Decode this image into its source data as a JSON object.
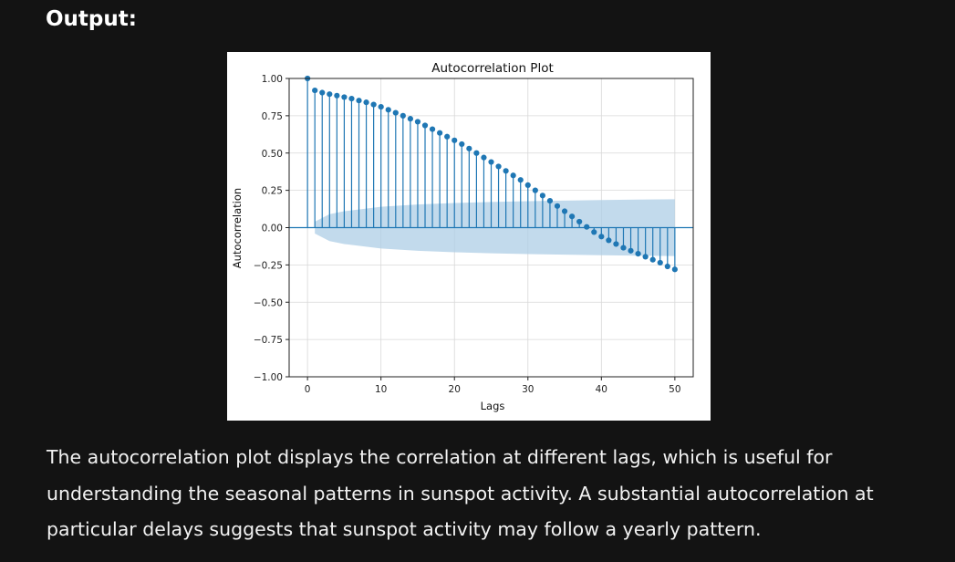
{
  "heading": "Output:",
  "caption": "The autocorrelation plot displays the correlation at different lags, which is useful for understanding the seasonal patterns in sunspot activity. A substantial autocorrelation at particular delays suggests that sunspot activity may follow a yearly pattern.",
  "colors": {
    "page_background": "#131313",
    "marker": "#1f77b4",
    "confidence_band": "#aecde6",
    "grid": "#d8d8d8"
  },
  "chart_data": {
    "type": "scatter",
    "style": "stem",
    "title": "Autocorrelation Plot",
    "xlabel": "Lags",
    "ylabel": "Autocorrelation",
    "xlim": [
      -2.5,
      52.5
    ],
    "ylim": [
      -1.0,
      1.0
    ],
    "xticks": [
      0,
      10,
      20,
      30,
      40,
      50
    ],
    "yticks": [
      1.0,
      0.75,
      0.5,
      0.25,
      0.0,
      -0.25,
      -0.5,
      -0.75,
      -1.0
    ],
    "ytick_labels": [
      "1.00",
      "0.75",
      "0.50",
      "0.25",
      "0.00",
      "−0.25",
      "−0.50",
      "−0.75",
      "−1.00"
    ],
    "grid": true,
    "x": [
      0,
      1,
      2,
      3,
      4,
      5,
      6,
      7,
      8,
      9,
      10,
      11,
      12,
      13,
      14,
      15,
      16,
      17,
      18,
      19,
      20,
      21,
      22,
      23,
      24,
      25,
      26,
      27,
      28,
      29,
      30,
      31,
      32,
      33,
      34,
      35,
      36,
      37,
      38,
      39,
      40,
      41,
      42,
      43,
      44,
      45,
      46,
      47,
      48,
      49,
      50
    ],
    "values": [
      1.0,
      0.92,
      0.905,
      0.895,
      0.885,
      0.875,
      0.865,
      0.852,
      0.84,
      0.825,
      0.81,
      0.79,
      0.77,
      0.75,
      0.73,
      0.71,
      0.685,
      0.66,
      0.635,
      0.61,
      0.585,
      0.56,
      0.53,
      0.5,
      0.47,
      0.44,
      0.41,
      0.38,
      0.35,
      0.32,
      0.285,
      0.25,
      0.215,
      0.18,
      0.145,
      0.11,
      0.075,
      0.04,
      0.005,
      -0.03,
      -0.06,
      -0.085,
      -0.11,
      -0.135,
      -0.155,
      -0.175,
      -0.195,
      -0.215,
      -0.235,
      -0.26,
      -0.28
    ],
    "confidence_band": {
      "lags": [
        1,
        3,
        5,
        10,
        15,
        20,
        25,
        30,
        35,
        40,
        45,
        50
      ],
      "upper": [
        0.04,
        0.09,
        0.11,
        0.14,
        0.155,
        0.165,
        0.172,
        0.177,
        0.181,
        0.185,
        0.188,
        0.19
      ],
      "lower": [
        -0.04,
        -0.09,
        -0.11,
        -0.14,
        -0.155,
        -0.165,
        -0.172,
        -0.177,
        -0.181,
        -0.185,
        -0.188,
        -0.19
      ]
    }
  }
}
